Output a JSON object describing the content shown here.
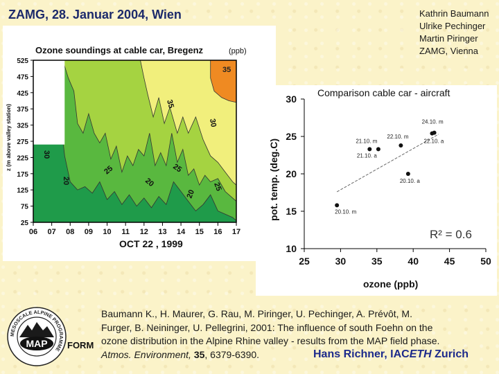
{
  "header": {
    "title": "ZAMG, 28. Januar 2004, Wien",
    "authors": [
      "Kathrin Baumann",
      "Ulrike Pechinger",
      "Martin Piringer",
      "ZAMG, Vienna"
    ]
  },
  "chart_data": [
    {
      "type": "heatmap",
      "title": "Ozone soundings at cable car, Bregenz",
      "unit_label": "(ppb)",
      "xlabel": "OCT  22 , 1999",
      "ylabel": "z (m above valley station)",
      "x_ticks": [
        "06",
        "07",
        "08",
        "09",
        "10",
        "11",
        "12",
        "13",
        "14",
        "15",
        "16",
        "17"
      ],
      "y_ticks": [
        "525",
        "475",
        "425",
        "375",
        "325",
        "275",
        "225",
        "175",
        "125",
        "75",
        "25"
      ],
      "xlim": [
        6,
        17
      ],
      "ylim": [
        25,
        525
      ],
      "contour_levels": [
        20,
        25,
        30,
        35
      ],
      "contour_labels": [
        "35",
        "35",
        "30",
        "30",
        "25",
        "25",
        "20",
        "20",
        "20",
        "25"
      ],
      "level_colors": [
        "#1f9b4a",
        "#59b83f",
        "#a5d341",
        "#f1ef7c",
        "#ef8a22"
      ]
    },
    {
      "type": "scatter",
      "title": "Comparison cable car - aircraft",
      "xlabel": "ozone (ppb)",
      "ylabel": "pot. temp. (deg.C)",
      "xlim": [
        25,
        50
      ],
      "ylim": [
        10,
        30
      ],
      "x_ticks": [
        25,
        30,
        35,
        40,
        45,
        50
      ],
      "y_ticks": [
        10,
        15,
        20,
        25,
        30
      ],
      "annotation": "R² = 0.6",
      "points": [
        {
          "label": "20.10. m",
          "x": 29.5,
          "y": 15.8
        },
        {
          "label": "21.10. m",
          "x": 34.0,
          "y": 23.3
        },
        {
          "label": "21.10. a",
          "x": 35.2,
          "y": 23.3
        },
        {
          "label": "22.10. m",
          "x": 38.3,
          "y": 23.8
        },
        {
          "label": "22.10. a",
          "x": 42.6,
          "y": 25.4
        },
        {
          "label": "24.10. m",
          "x": 42.9,
          "y": 25.5
        },
        {
          "label": "20.10. a",
          "x": 39.3,
          "y": 20.0
        }
      ],
      "trend_line": {
        "x": [
          29.5,
          43.5
        ],
        "y": [
          17.6,
          25.3
        ]
      }
    }
  ],
  "citation": {
    "lines": [
      "Baumann K., H. Maurer, G. Rau, M. Piringer, U. Pechinger, A. Prévôt, M.",
      "Furger, B. Neininger, U. Pellegrini, 2001: The influence of south Foehn on the",
      "ozone distribution in the Alpine Rhine valley - results from the MAP field phase."
    ],
    "journal": "Atmos. Environment,",
    "volume": "35",
    "pages": ", 6379-6390."
  },
  "credit": {
    "prefix": "Hans Richner, IAC",
    "eth": "ETH",
    "suffix": " Zurich"
  },
  "logo": {
    "ring_text": "MESOSCALE ALPINE PROGRAMME",
    "center_text": "MAP",
    "side_label": "FORM"
  }
}
